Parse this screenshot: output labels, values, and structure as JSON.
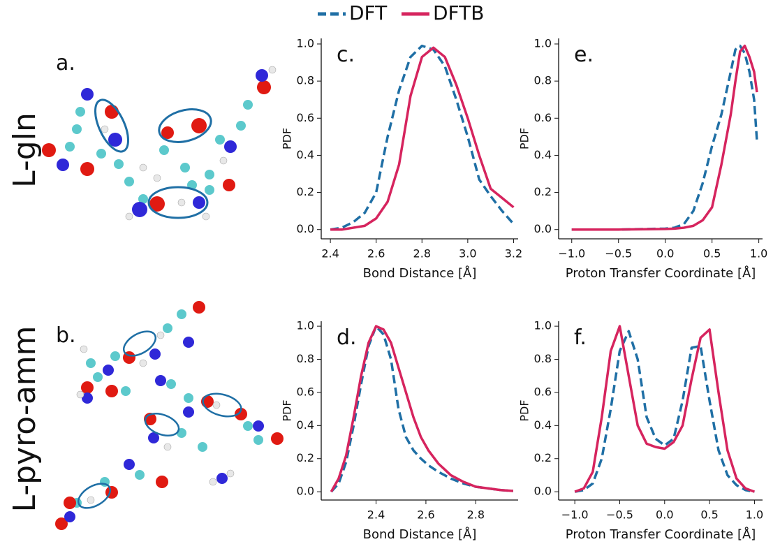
{
  "legend": [
    {
      "name": "DFT",
      "color": "#1f6fa5",
      "linestyle": "dashed"
    },
    {
      "name": "DFTB",
      "color": "#d6245e",
      "linestyle": "solid"
    }
  ],
  "molecule_panels": [
    {
      "label": "a.",
      "name": "L-gln"
    },
    {
      "label": "b.",
      "name": "L-pyro-amm"
    }
  ],
  "chart_data": [
    {
      "type": "line",
      "annotation": "c.",
      "xlabel": "Bond Distance [Å]",
      "ylabel": "PDF",
      "x": [
        2.4,
        2.45,
        2.5,
        2.55,
        2.6,
        2.65,
        2.7,
        2.75,
        2.8,
        2.85,
        2.9,
        2.95,
        3.0,
        3.05,
        3.1,
        3.15,
        3.2
      ],
      "series": [
        {
          "values": [
            0.0,
            0.01,
            0.04,
            0.09,
            0.2,
            0.5,
            0.75,
            0.93,
            0.99,
            0.97,
            0.88,
            0.7,
            0.5,
            0.27,
            0.18,
            0.1,
            0.03
          ]
        },
        {
          "values": [
            0.0,
            0.0,
            0.01,
            0.02,
            0.06,
            0.15,
            0.35,
            0.72,
            0.93,
            0.98,
            0.93,
            0.78,
            0.6,
            0.4,
            0.22,
            0.17,
            0.12
          ]
        }
      ],
      "xlim": [
        2.36,
        3.22
      ],
      "ylim": [
        -0.05,
        1.03
      ],
      "xticks": [
        2.4,
        2.6,
        2.8,
        {
          "value": 3.0,
          "label": "3.0"
        },
        3.2
      ],
      "yticks": [
        {
          "value": 0,
          "label": "0.0"
        },
        0.2,
        0.4,
        0.6,
        0.8,
        {
          "value": 1,
          "label": "1.0"
        }
      ]
    },
    {
      "type": "line",
      "annotation": "e.",
      "xlabel": "Proton Transfer Coordinate [Å]",
      "ylabel": "PDF",
      "x": [
        -1.0,
        -0.5,
        0.0,
        0.1,
        0.2,
        0.3,
        0.4,
        0.5,
        0.6,
        0.7,
        0.75,
        0.8,
        0.85,
        0.9,
        0.95,
        0.98
      ],
      "series": [
        {
          "values": [
            0,
            0,
            0.005,
            0.01,
            0.03,
            0.1,
            0.25,
            0.45,
            0.62,
            0.85,
            0.97,
            0.99,
            0.95,
            0.85,
            0.7,
            0.48
          ]
        },
        {
          "values": [
            0,
            0,
            0.003,
            0.005,
            0.01,
            0.02,
            0.05,
            0.12,
            0.35,
            0.62,
            0.8,
            0.96,
            0.99,
            0.93,
            0.85,
            0.74
          ]
        }
      ],
      "xlim": [
        -1.14,
        1.04
      ],
      "ylim": [
        -0.05,
        1.03
      ],
      "xticks": [
        {
          "value": -1,
          "label": "−1.0"
        },
        {
          "value": -0.5,
          "label": "−0.5"
        },
        {
          "value": 0,
          "label": "0.0"
        },
        0.5,
        {
          "value": 1,
          "label": "1.0"
        }
      ],
      "yticks": [
        {
          "value": 0,
          "label": "0.0"
        },
        0.2,
        0.4,
        0.6,
        0.8,
        {
          "value": 1,
          "label": "1.0"
        }
      ]
    },
    {
      "type": "line",
      "annotation": "d.",
      "xlabel": "Bond Distance [Å]",
      "ylabel": "PDF",
      "x": [
        2.22,
        2.25,
        2.28,
        2.31,
        2.34,
        2.37,
        2.4,
        2.43,
        2.46,
        2.49,
        2.52,
        2.55,
        2.58,
        2.61,
        2.65,
        2.7,
        2.75,
        2.8,
        2.85,
        2.9,
        2.95
      ],
      "series": [
        {
          "values": [
            0,
            0.05,
            0.18,
            0.4,
            0.65,
            0.88,
            1.0,
            0.95,
            0.8,
            0.5,
            0.33,
            0.25,
            0.2,
            0.16,
            0.12,
            0.08,
            0.05,
            0.03,
            0.02,
            0.01,
            0.005
          ]
        },
        {
          "values": [
            0,
            0.08,
            0.22,
            0.45,
            0.7,
            0.9,
            1.0,
            0.98,
            0.9,
            0.75,
            0.6,
            0.45,
            0.33,
            0.25,
            0.17,
            0.1,
            0.06,
            0.03,
            0.02,
            0.01,
            0.005
          ]
        }
      ],
      "xlim": [
        2.18,
        2.97
      ],
      "ylim": [
        -0.05,
        1.03
      ],
      "xticks": [
        2.4,
        2.6,
        2.8
      ],
      "yticks": [
        {
          "value": 0,
          "label": "0.0"
        },
        0.2,
        0.4,
        0.6,
        0.8,
        {
          "value": 1,
          "label": "1.0"
        }
      ]
    },
    {
      "type": "line",
      "annotation": "f.",
      "xlabel": "Proton Transfer Coordinate [Å]",
      "ylabel": "PDF",
      "x": [
        -1.0,
        -0.9,
        -0.8,
        -0.7,
        -0.6,
        -0.5,
        -0.4,
        -0.3,
        -0.2,
        -0.1,
        0.0,
        0.1,
        0.2,
        0.3,
        0.4,
        0.5,
        0.6,
        0.7,
        0.8,
        0.9,
        1.0
      ],
      "series": [
        {
          "values": [
            0,
            0.01,
            0.05,
            0.2,
            0.5,
            0.85,
            0.97,
            0.8,
            0.45,
            0.32,
            0.28,
            0.32,
            0.55,
            0.87,
            0.88,
            0.55,
            0.25,
            0.1,
            0.04,
            0.01,
            0
          ]
        },
        {
          "values": [
            0,
            0.02,
            0.12,
            0.45,
            0.85,
            1.0,
            0.7,
            0.4,
            0.29,
            0.27,
            0.26,
            0.3,
            0.4,
            0.68,
            0.93,
            0.98,
            0.6,
            0.25,
            0.08,
            0.02,
            0
          ]
        }
      ],
      "xlim": [
        -1.18,
        1.09
      ],
      "ylim": [
        -0.05,
        1.03
      ],
      "xticks": [
        {
          "value": -1,
          "label": "−1.0"
        },
        {
          "value": -0.5,
          "label": "−0.5"
        },
        {
          "value": 0,
          "label": "0.0"
        },
        0.5,
        {
          "value": 1,
          "label": "1.0"
        }
      ],
      "yticks": [
        {
          "value": 0,
          "label": "0.0"
        },
        0.2,
        0.4,
        0.6,
        0.8,
        {
          "value": 1,
          "label": "1.0"
        }
      ]
    }
  ]
}
